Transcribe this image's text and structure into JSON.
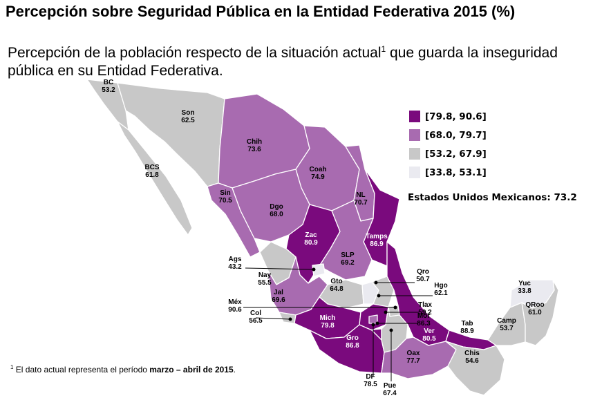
{
  "title": "Percepción sobre Seguridad Pública en la Entidad Federativa 2015 (%)",
  "subtitle": {
    "before": "Percepción de la población respecto de la situación actual",
    "sup": "1",
    "after": " que guarda la inseguridad pública en su Entidad Federativa."
  },
  "colors": {
    "high": "#7a0a7d",
    "mid": "#a86bb0",
    "low": "#c8c8c8",
    "lowest": "#eaeaf0",
    "border": "#ffffff"
  },
  "legend": [
    {
      "label": "[79.8, 90.6]",
      "class": "high"
    },
    {
      "label": "[68.0, 79.7]",
      "class": "mid"
    },
    {
      "label": "[53.2, 67.9]",
      "class": "low"
    },
    {
      "label": "[33.8, 53.1]",
      "class": "lowest"
    }
  ],
  "national": {
    "label": "Estados Unidos Mexicanos:",
    "value": "73.2"
  },
  "states": [
    {
      "abbr": "BC",
      "value": "53.2",
      "class": "low"
    },
    {
      "abbr": "Son",
      "value": "62.5",
      "class": "low"
    },
    {
      "abbr": "BCS",
      "value": "61.8",
      "class": "low"
    },
    {
      "abbr": "Chih",
      "value": "73.6",
      "class": "mid"
    },
    {
      "abbr": "Coah",
      "value": "74.9",
      "class": "mid"
    },
    {
      "abbr": "Sin",
      "value": "70.5",
      "class": "mid"
    },
    {
      "abbr": "Dgo",
      "value": "68.0",
      "class": "mid"
    },
    {
      "abbr": "NL",
      "value": "70.7",
      "class": "mid"
    },
    {
      "abbr": "Zac",
      "value": "80.9",
      "class": "high"
    },
    {
      "abbr": "Tamps",
      "value": "86.9",
      "class": "high"
    },
    {
      "abbr": "SLP",
      "value": "69.2",
      "class": "mid"
    },
    {
      "abbr": "Ags",
      "value": "43.2",
      "class": "lowest"
    },
    {
      "abbr": "Nay",
      "value": "55.5",
      "class": "low"
    },
    {
      "abbr": "Gto",
      "value": "64.8",
      "class": "low"
    },
    {
      "abbr": "Qro",
      "value": "50.7",
      "class": "lowest"
    },
    {
      "abbr": "Hgo",
      "value": "62.1",
      "class": "low"
    },
    {
      "abbr": "Jal",
      "value": "69.6",
      "class": "mid"
    },
    {
      "abbr": "Méx",
      "value": "90.6",
      "class": "high"
    },
    {
      "abbr": "Tlax",
      "value": "59.2",
      "class": "low"
    },
    {
      "abbr": "Mor",
      "value": "86.3",
      "class": "high"
    },
    {
      "abbr": "Col",
      "value": "56.5",
      "class": "low"
    },
    {
      "abbr": "Mich",
      "value": "79.8",
      "class": "high"
    },
    {
      "abbr": "Gro",
      "value": "86.8",
      "class": "high"
    },
    {
      "abbr": "Ver",
      "value": "80.5",
      "class": "high"
    },
    {
      "abbr": "Oax",
      "value": "77.7",
      "class": "mid"
    },
    {
      "abbr": "Tab",
      "value": "88.9",
      "class": "high"
    },
    {
      "abbr": "Chis",
      "value": "54.6",
      "class": "low"
    },
    {
      "abbr": "Camp",
      "value": "53.7",
      "class": "low"
    },
    {
      "abbr": "Yuc",
      "value": "33.8",
      "class": "lowest"
    },
    {
      "abbr": "QRoo",
      "value": "61.0",
      "class": "low"
    },
    {
      "abbr": "DF",
      "value": "78.5",
      "class": "mid"
    },
    {
      "abbr": "Pue",
      "value": "67.4",
      "class": "low"
    }
  ],
  "footnote": {
    "sup": "1",
    "before": " El dato actual representa el período ",
    "bold": "marzo – abril de 2015",
    "after": "."
  }
}
